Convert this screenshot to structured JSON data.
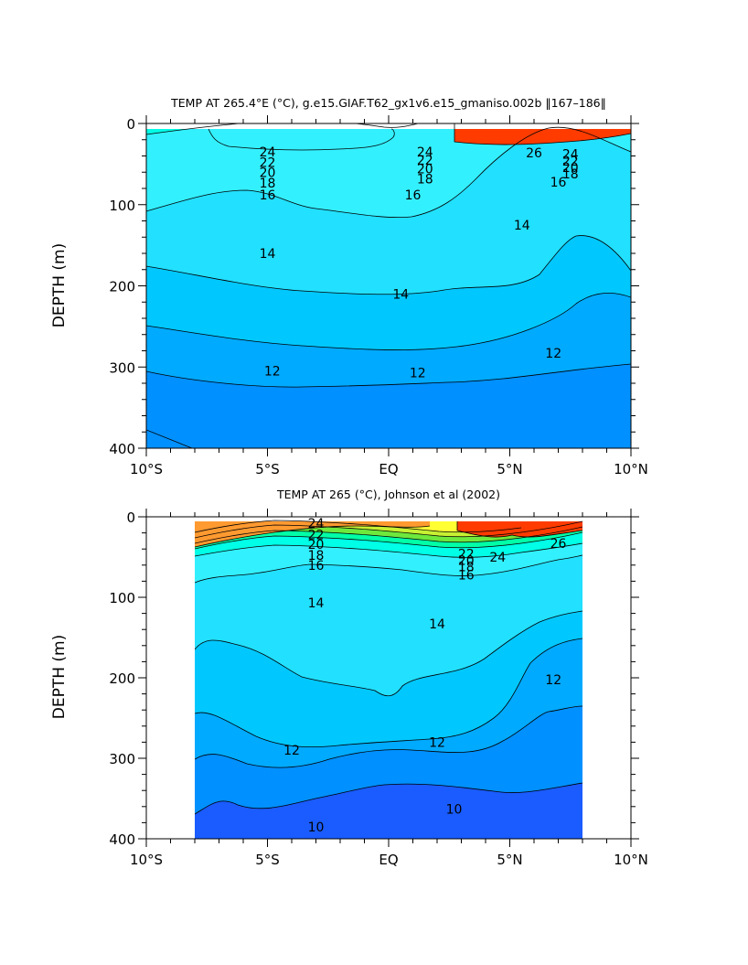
{
  "chart_data": [
    {
      "type": "contour",
      "title": "TEMP AT 265.4°E (°C), g.e15.GIAF.T62_gx1v6.e15_gmaniso.002b ‖167–186‖",
      "xlabel": "",
      "ylabel": "DEPTH (m)",
      "x_ticks": [
        "10°S",
        "5°S",
        "EQ",
        "5°N",
        "10°N"
      ],
      "x_range": [
        -10,
        10
      ],
      "y_ticks": [
        "0",
        "100",
        "200",
        "300",
        "400"
      ],
      "y_range": [
        0,
        400
      ],
      "y_inverted": true,
      "data_x_range": [
        -10,
        10
      ],
      "contour_labels": [
        {
          "text": "24",
          "lat": -5.0,
          "depth": 35
        },
        {
          "text": "22",
          "lat": -5.0,
          "depth": 48
        },
        {
          "text": "20",
          "lat": -5.0,
          "depth": 60
        },
        {
          "text": "18",
          "lat": -5.0,
          "depth": 73
        },
        {
          "text": "16",
          "lat": -5.0,
          "depth": 88
        },
        {
          "text": "24",
          "lat": 1.5,
          "depth": 35
        },
        {
          "text": "22",
          "lat": 1.5,
          "depth": 45
        },
        {
          "text": "20",
          "lat": 1.5,
          "depth": 56
        },
        {
          "text": "18",
          "lat": 1.5,
          "depth": 68
        },
        {
          "text": "16",
          "lat": 1.0,
          "depth": 88
        },
        {
          "text": "26",
          "lat": 6.0,
          "depth": 36
        },
        {
          "text": "24",
          "lat": 7.5,
          "depth": 38
        },
        {
          "text": "22",
          "lat": 7.5,
          "depth": 46
        },
        {
          "text": "20",
          "lat": 7.5,
          "depth": 54
        },
        {
          "text": "18",
          "lat": 7.5,
          "depth": 62
        },
        {
          "text": "16",
          "lat": 7.0,
          "depth": 72
        },
        {
          "text": "14",
          "lat": -5.0,
          "depth": 160
        },
        {
          "text": "14",
          "lat": 5.5,
          "depth": 125
        },
        {
          "text": "14",
          "lat": 0.5,
          "depth": 210
        },
        {
          "text": "12",
          "lat": -4.8,
          "depth": 305
        },
        {
          "text": "12",
          "lat": 1.2,
          "depth": 307
        },
        {
          "text": "12",
          "lat": 6.8,
          "depth": 283
        }
      ]
    },
    {
      "type": "contour",
      "title": "TEMP AT 265 (°C), Johnson et al (2002)",
      "xlabel": "",
      "ylabel": "DEPTH (m)",
      "x_ticks": [
        "10°S",
        "5°S",
        "EQ",
        "5°N",
        "10°N"
      ],
      "x_range": [
        -10,
        10
      ],
      "y_ticks": [
        "0",
        "100",
        "200",
        "300",
        "400"
      ],
      "y_range": [
        0,
        400
      ],
      "y_inverted": true,
      "data_x_range": [
        -8,
        8
      ],
      "contour_labels": [
        {
          "text": "24",
          "lat": -3.0,
          "depth": 8
        },
        {
          "text": "22",
          "lat": -3.0,
          "depth": 22
        },
        {
          "text": "20",
          "lat": -3.0,
          "depth": 34
        },
        {
          "text": "18",
          "lat": -3.0,
          "depth": 48
        },
        {
          "text": "16",
          "lat": -3.0,
          "depth": 60
        },
        {
          "text": "14",
          "lat": -3.0,
          "depth": 107
        },
        {
          "text": "14",
          "lat": 2.0,
          "depth": 133
        },
        {
          "text": "12",
          "lat": -4.0,
          "depth": 290
        },
        {
          "text": "12",
          "lat": 2.0,
          "depth": 280
        },
        {
          "text": "12",
          "lat": 6.8,
          "depth": 202
        },
        {
          "text": "10",
          "lat": -3.0,
          "depth": 385
        },
        {
          "text": "10",
          "lat": 2.7,
          "depth": 363
        },
        {
          "text": "24",
          "lat": 4.5,
          "depth": 50
        },
        {
          "text": "22",
          "lat": 3.2,
          "depth": 46
        },
        {
          "text": "20",
          "lat": 3.2,
          "depth": 54
        },
        {
          "text": "18",
          "lat": 3.2,
          "depth": 62
        },
        {
          "text": "16",
          "lat": 3.2,
          "depth": 72
        },
        {
          "text": "26",
          "lat": 7.0,
          "depth": 33
        }
      ]
    }
  ],
  "colors": {
    "t26": "#ff3b00",
    "t24": "#ff9a30",
    "t22": "#ffc444",
    "t20": "#ffff33",
    "t19": "#c8f032",
    "t18": "#6ee83c",
    "t17": "#1ccf3a",
    "t16": "#00ffa6",
    "t15": "#00ffe6",
    "t14": "#33f0ff",
    "t13": "#22e0ff",
    "t12": "#00c8ff",
    "t11": "#00aaff",
    "t10": "#0090ff",
    "t9": "#1a5cff"
  }
}
